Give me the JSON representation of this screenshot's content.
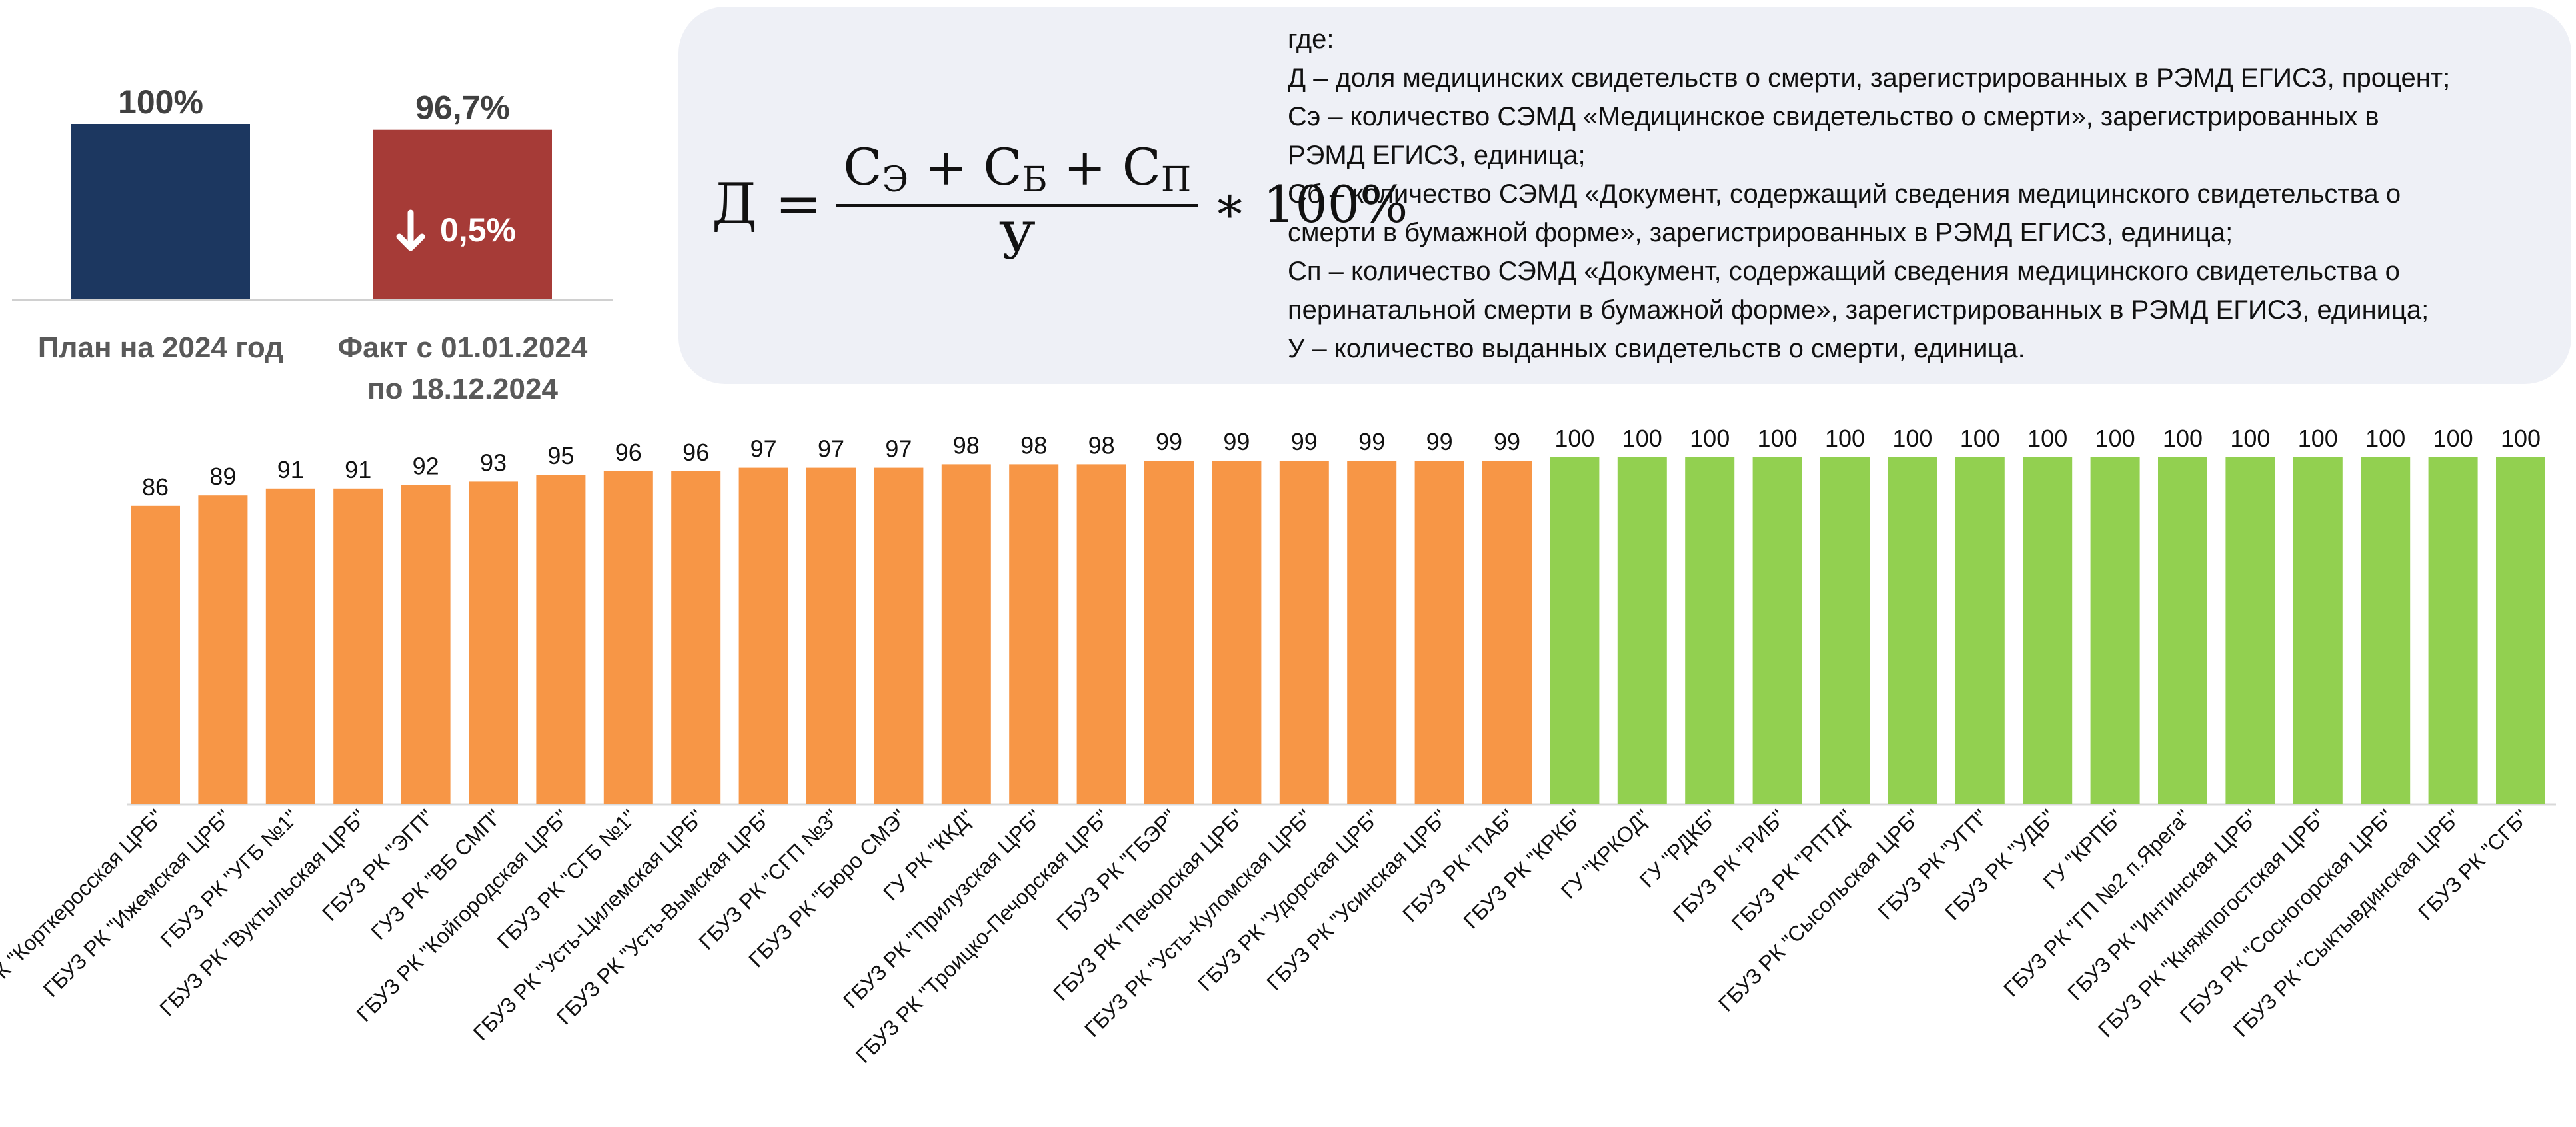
{
  "plan_panel": {
    "plan": {
      "value": 100,
      "value_label": "100%",
      "label": "План на 2024 год",
      "color": "#1c3760"
    },
    "fact": {
      "value": 96.7,
      "value_label": "96,7%",
      "label_line1": "Факт с 01.01.2024",
      "label_line2": "по 18.12.2024",
      "change_label": "0,5%",
      "change_icon": "arrow-down-icon",
      "color": "#a63b37"
    }
  },
  "formula": {
    "lhs": "Д =",
    "numerator": {
      "c1": "С",
      "s1": "Э",
      "plus1": " + ",
      "c2": "С",
      "s2": "Б",
      "plus2": " + ",
      "c3": "С",
      "s3": "П"
    },
    "denominator": "У",
    "rhs": "∗ 100%"
  },
  "legend_lines": [
    "где:",
    "Д – доля медицинских свидетельств о смерти, зарегистрированных в РЭМД ЕГИСЗ, процент;",
    "Сэ – количество СЭМД «Медицинское свидетельство о смерти», зарегистрированных в",
    "РЭМД ЕГИСЗ, единица;",
    "Сб – количество СЭМД «Документ, содержащий сведения медицинского свидетельства о",
    "смерти в бумажной форме», зарегистрированных в РЭМД ЕГИСЗ, единица;",
    "Сп – количество СЭМД «Документ, содержащий сведения медицинского свидетельства о",
    "перинатальной смерти в бумажной форме», зарегистрированных в РЭМД ЕГИСЗ, единица;",
    "У – количество выданных свидетельств о смерти, единица."
  ],
  "chart_data": {
    "type": "bar",
    "categories": [
      "ГБУЗ РК \"Корткеросская ЦРБ\"",
      "ГБУЗ РК \"Ижемская ЦРБ\"",
      "ГБУЗ РК \"УГБ №1\"",
      "ГБУЗ РК \"Вуктыльская ЦРБ\"",
      "ГБУЗ РК \"ЭГП\"",
      "ГУЗ РК \"ВБ СМП\"",
      "ГБУЗ РК \"Койгородская ЦРБ\"",
      "ГБУЗ РК \"СГБ №1\"",
      "ГБУЗ РК \"Усть-Цилемская ЦРБ\"",
      "ГБУЗ РК \"Усть-Вымская ЦРБ\"",
      "ГБУЗ РК \"СГП №3\"",
      "ГБУЗ РК \"Бюро СМЭ\"",
      "ГУ РК \"ККД\"",
      "ГБУЗ РК \"Прилузская ЦРБ\"",
      "ГБУЗ РК \"Троицко-Печорская ЦРБ\"",
      "ГБУЗ РК \"ГБЭР\"",
      "ГБУЗ РК \"Печорская ЦРБ\"",
      "ГБУЗ РК \"Усть-Куломская ЦРБ\"",
      "ГБУЗ РК \"Удорская ЦРБ\"",
      "ГБУЗ РК \"Усинская ЦРБ\"",
      "ГБУЗ РК \"ПАБ\"",
      "ГБУЗ РК \"КРКБ\"",
      "ГУ \"КРКОД\"",
      "ГУ \"РДКБ\"",
      "ГБУЗ РК \"РИБ\"",
      "ГБУЗ РК \"РПТД\"",
      "ГБУЗ РК \"Сысольская ЦРБ\"",
      "ГБУЗ РК \"УГП\"",
      "ГБУЗ РК \"УДБ\"",
      "ГУ \"КРПБ\"",
      "ГБУЗ РК \"ГП №2 п.Ярега\"",
      "ГБУЗ РК \"Интинская ЦРБ\"",
      "ГБУЗ РК \"Княжпогостская ЦРБ\"",
      "ГБУЗ РК \"Сосногорская ЦРБ\"",
      "ГБУЗ РК \"Сыктывдинская ЦРБ\"",
      "ГБУЗ РК \"СГБ\""
    ],
    "values": [
      86,
      89,
      91,
      91,
      92,
      93,
      95,
      96,
      96,
      97,
      97,
      97,
      98,
      98,
      98,
      99,
      99,
      99,
      99,
      99,
      99,
      100,
      100,
      100,
      100,
      100,
      100,
      100,
      100,
      100,
      100,
      100,
      100,
      100,
      100,
      100
    ],
    "value_labels": [
      "86",
      "89",
      "91",
      "91",
      "92",
      "93",
      "95",
      "96",
      "96",
      "97",
      "97",
      "97",
      "98",
      "98",
      "98",
      "99",
      "99",
      "99",
      "99",
      "99",
      "99",
      "100",
      "100",
      "100",
      "100",
      "100",
      "100",
      "100",
      "100",
      "100",
      "100",
      "100",
      "100",
      "100",
      "100",
      "100"
    ],
    "ylim": [
      0,
      100
    ],
    "colors": {
      "below_target": "#f79646",
      "target_met": "#92d050"
    },
    "title": "",
    "xlabel": "",
    "ylabel": "",
    "grid": false,
    "legend": "none"
  }
}
